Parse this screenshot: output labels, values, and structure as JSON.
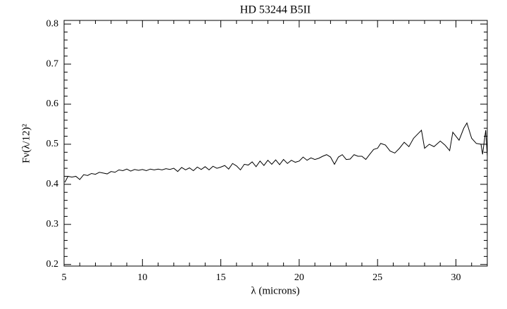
{
  "chart_data": {
    "type": "line",
    "title": "HD 53244 B5II",
    "xlabel": "λ (microns)",
    "ylabel": "Fν(λ/12)²",
    "xlim": [
      5,
      32
    ],
    "ylim": [
      0.196,
      0.809
    ],
    "xticks": [
      5,
      10,
      15,
      20,
      25,
      30
    ],
    "yticks": [
      0.2,
      0.3,
      0.4,
      0.5,
      0.6,
      0.7,
      0.8
    ],
    "minor_ticks_per_major": {
      "x": 5,
      "y": 5
    },
    "grid": false,
    "series": [
      {
        "color": "#000000",
        "x": [
          5.05,
          5.25,
          5.5,
          5.75,
          6.0,
          6.25,
          6.5,
          6.75,
          7.0,
          7.25,
          7.5,
          7.75,
          8.0,
          8.25,
          8.5,
          8.75,
          9.0,
          9.25,
          9.5,
          9.75,
          10.0,
          10.25,
          10.5,
          10.75,
          11.0,
          11.25,
          11.5,
          11.75,
          12.0,
          12.25,
          12.5,
          12.75,
          13.0,
          13.25,
          13.5,
          13.75,
          14.0,
          14.25,
          14.5,
          14.75,
          15.0,
          15.25,
          15.5,
          15.75,
          16.0,
          16.25,
          16.5,
          16.75,
          17.0,
          17.25,
          17.5,
          17.75,
          18.0,
          18.25,
          18.5,
          18.75,
          19.0,
          19.25,
          19.5,
          19.75,
          20.0,
          20.25,
          20.5,
          20.75,
          21.0,
          21.25,
          21.5,
          21.75,
          22.0,
          22.25,
          22.5,
          22.75,
          23.0,
          23.25,
          23.5,
          23.75,
          24.0,
          24.25,
          24.5,
          24.75,
          25.0,
          25.2,
          25.5,
          25.8,
          26.1,
          26.4,
          26.7,
          27.0,
          27.3,
          27.6,
          27.8,
          28.0,
          28.3,
          28.6,
          29.0,
          29.3,
          29.6,
          29.8,
          30.0,
          30.2,
          30.5,
          30.7,
          31.0,
          31.3,
          31.6,
          31.7,
          31.9,
          32.0
        ],
        "values": [
          0.405,
          0.42,
          0.418,
          0.42,
          0.412,
          0.424,
          0.422,
          0.427,
          0.425,
          0.43,
          0.428,
          0.426,
          0.432,
          0.43,
          0.436,
          0.434,
          0.438,
          0.433,
          0.437,
          0.435,
          0.437,
          0.434,
          0.438,
          0.436,
          0.438,
          0.436,
          0.439,
          0.437,
          0.44,
          0.432,
          0.442,
          0.436,
          0.441,
          0.434,
          0.443,
          0.437,
          0.444,
          0.436,
          0.445,
          0.44,
          0.443,
          0.447,
          0.438,
          0.452,
          0.446,
          0.436,
          0.45,
          0.448,
          0.456,
          0.444,
          0.458,
          0.447,
          0.46,
          0.45,
          0.461,
          0.449,
          0.462,
          0.452,
          0.46,
          0.455,
          0.458,
          0.468,
          0.46,
          0.466,
          0.462,
          0.465,
          0.47,
          0.474,
          0.468,
          0.45,
          0.468,
          0.474,
          0.462,
          0.463,
          0.474,
          0.47,
          0.47,
          0.462,
          0.475,
          0.487,
          0.49,
          0.502,
          0.498,
          0.483,
          0.478,
          0.49,
          0.505,
          0.494,
          0.515,
          0.527,
          0.535,
          0.49,
          0.5,
          0.494,
          0.508,
          0.498,
          0.484,
          0.53,
          0.52,
          0.51,
          0.54,
          0.553,
          0.515,
          0.502,
          0.5,
          0.475,
          0.535,
          0.47
        ]
      }
    ]
  }
}
